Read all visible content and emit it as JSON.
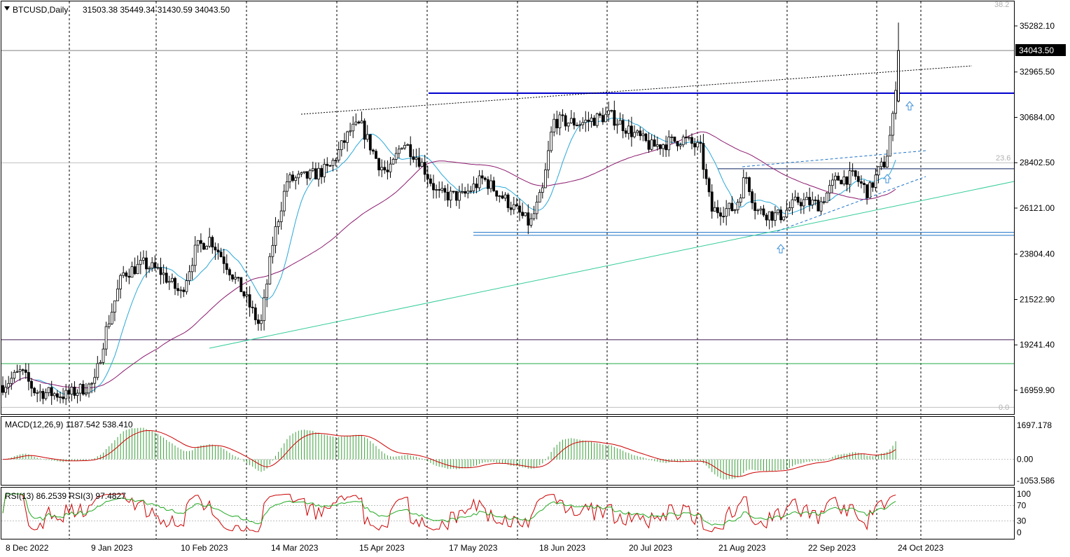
{
  "chart_data": {
    "type": "candlestick",
    "symbol": "BTCUSD",
    "timeframe": "Daily",
    "header": {
      "title": "BTCUSD,Daily",
      "ohlc_text": "31503.38 35449.34 31430.59 34043.50",
      "open": 31503.38,
      "high": 35449.34,
      "low": 31430.59,
      "close": 34043.5
    },
    "current_price_label": "34043.50",
    "y_axis": {
      "ticks": [
        35282.1,
        32965.5,
        30684.0,
        28402.5,
        26121.0,
        23804.4,
        21522.9,
        19241.4,
        16959.9
      ],
      "tick_labels": [
        "35282.10",
        "32965.50",
        "30684.00",
        "28402.50",
        "26121.00",
        "23804.40",
        "21522.90",
        "19241.40",
        "16959.90"
      ],
      "range": [
        15900,
        36000
      ]
    },
    "x_axis": {
      "labels": [
        "8 Dec 2022",
        "9 Jan 2023",
        "10 Feb 2023",
        "14 Mar 2023",
        "15 Apr 2023",
        "17 May 2023",
        "18 Jun 2023",
        "20 Jul 2023",
        "21 Aug 2023",
        "22 Sep 2023",
        "24 Oct 2023"
      ]
    },
    "fibonacci_levels": [
      "38.2",
      "23.6",
      "0.0"
    ],
    "close_series_approx": [
      {
        "date": "8 Dec 2022",
        "close": 17200
      },
      {
        "date": "9 Jan 2023",
        "close": 17250
      },
      {
        "date": "10 Feb 2023",
        "close": 21800
      },
      {
        "date": "14 Mar 2023",
        "close": 24800
      },
      {
        "date": "15 Apr 2023",
        "close": 30300
      },
      {
        "date": "17 May 2023",
        "close": 27000
      },
      {
        "date": "18 Jun 2023",
        "close": 26300
      },
      {
        "date": "20 Jul 2023",
        "close": 29900
      },
      {
        "date": "21 Aug 2023",
        "close": 26100
      },
      {
        "date": "22 Sep 2023",
        "close": 26600
      },
      {
        "date": "24 Oct 2023",
        "close": 34043.5
      }
    ],
    "horizontal_levels": [
      {
        "price": 34043.5,
        "color": "#808080"
      },
      {
        "price": 31900,
        "color": "#0000cc"
      },
      {
        "price": 28100,
        "color": "#0b1f5e"
      },
      {
        "price": 24750,
        "color": "#1e73c8"
      },
      {
        "price": 19500,
        "color": "#3d1a4f"
      },
      {
        "price": 18300,
        "color": "#22aa44"
      }
    ],
    "indicators": {
      "macd": {
        "label": "MACD(12,26,9) 1187.542 538.410",
        "params": "12,26,9",
        "main": 1187.542,
        "signal": 538.41,
        "ticks": [
          "1697.178",
          "0.00",
          "-1053.586"
        ],
        "range": [
          -1200,
          1800
        ]
      },
      "rsi": {
        "label": "RSI(13) 86.2539  RSI(3) 97.4827",
        "rsi13": 86.2539,
        "rsi3": 97.4827,
        "ticks": [
          "100",
          "70",
          "30",
          "0"
        ],
        "range": [
          0,
          100
        ]
      }
    },
    "colors": {
      "bull_body": "#ffffff",
      "candle": "#000000",
      "ma_fast": "#29a8d8",
      "ma_slow": "#8b1a6e",
      "trend_green": "#33cc99",
      "macd_hist": "#3ca03c",
      "macd_signal": "#cc0000",
      "rsi_fast": "#cc0000",
      "rsi_slow": "#22aa22",
      "arrow": "#3b8fd9"
    }
  }
}
